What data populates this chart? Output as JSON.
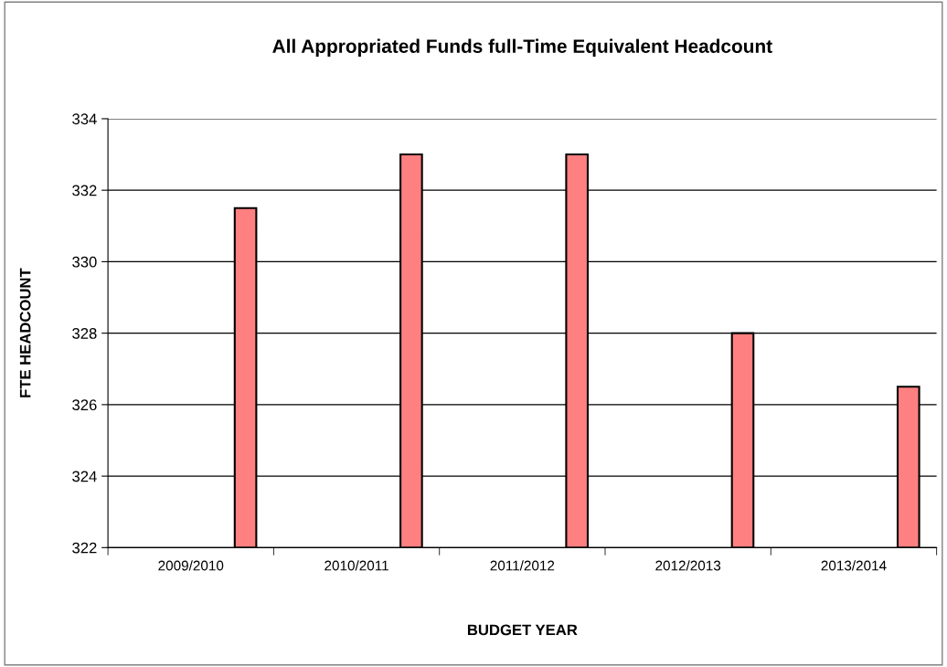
{
  "chart_data": {
    "type": "bar",
    "title": "All Appropriated Funds full-Time Equivalent Headcount",
    "xlabel": "BUDGET YEAR",
    "ylabel": "FTE HEADCOUNT",
    "categories": [
      "2009/2010",
      "2010/2011",
      "2011/2012",
      "2012/2013",
      "2013/2014"
    ],
    "values": [
      331.5,
      333,
      333,
      328,
      326.5
    ],
    "color": "#ff8080",
    "ylim": [
      322,
      334
    ],
    "yticks": [
      322,
      324,
      326,
      328,
      330,
      332,
      334
    ],
    "grid": "y",
    "legend": false
  }
}
